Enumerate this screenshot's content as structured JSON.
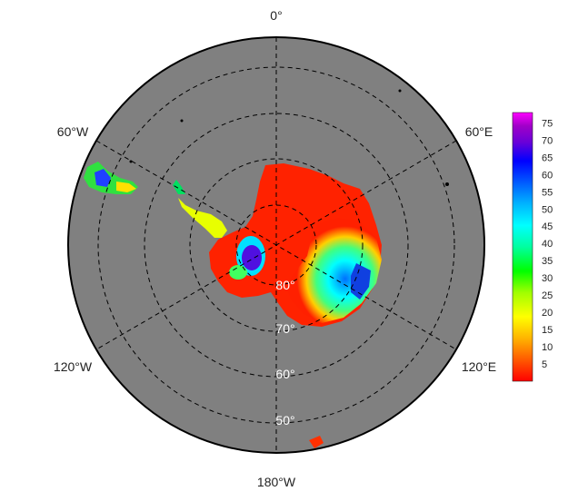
{
  "map": {
    "projection": "south-polar-stereographic",
    "background_color": "#808080",
    "grid_style": "dashed",
    "longitude_labels": {
      "top": "0°",
      "upper_left": "60°W",
      "upper_right": "60°E",
      "lower_left": "120°W",
      "lower_right": "120°E",
      "bottom": "180°W"
    },
    "latitude_labels": [
      "80°",
      "70°",
      "60°",
      "50°"
    ]
  },
  "colorbar": {
    "ticks": [
      "75",
      "70",
      "65",
      "60",
      "55",
      "50",
      "45",
      "40",
      "35",
      "30",
      "25",
      "20",
      "15",
      "10",
      "5"
    ],
    "range": [
      0,
      78
    ],
    "colors": [
      "#ff0000",
      "#ff5a00",
      "#ffb400",
      "#ffff00",
      "#a0ff00",
      "#00ff00",
      "#00ffa0",
      "#00ffff",
      "#00b4ff",
      "#005aff",
      "#0000ff",
      "#6a00d8",
      "#a000c8",
      "#ff00ff"
    ]
  }
}
